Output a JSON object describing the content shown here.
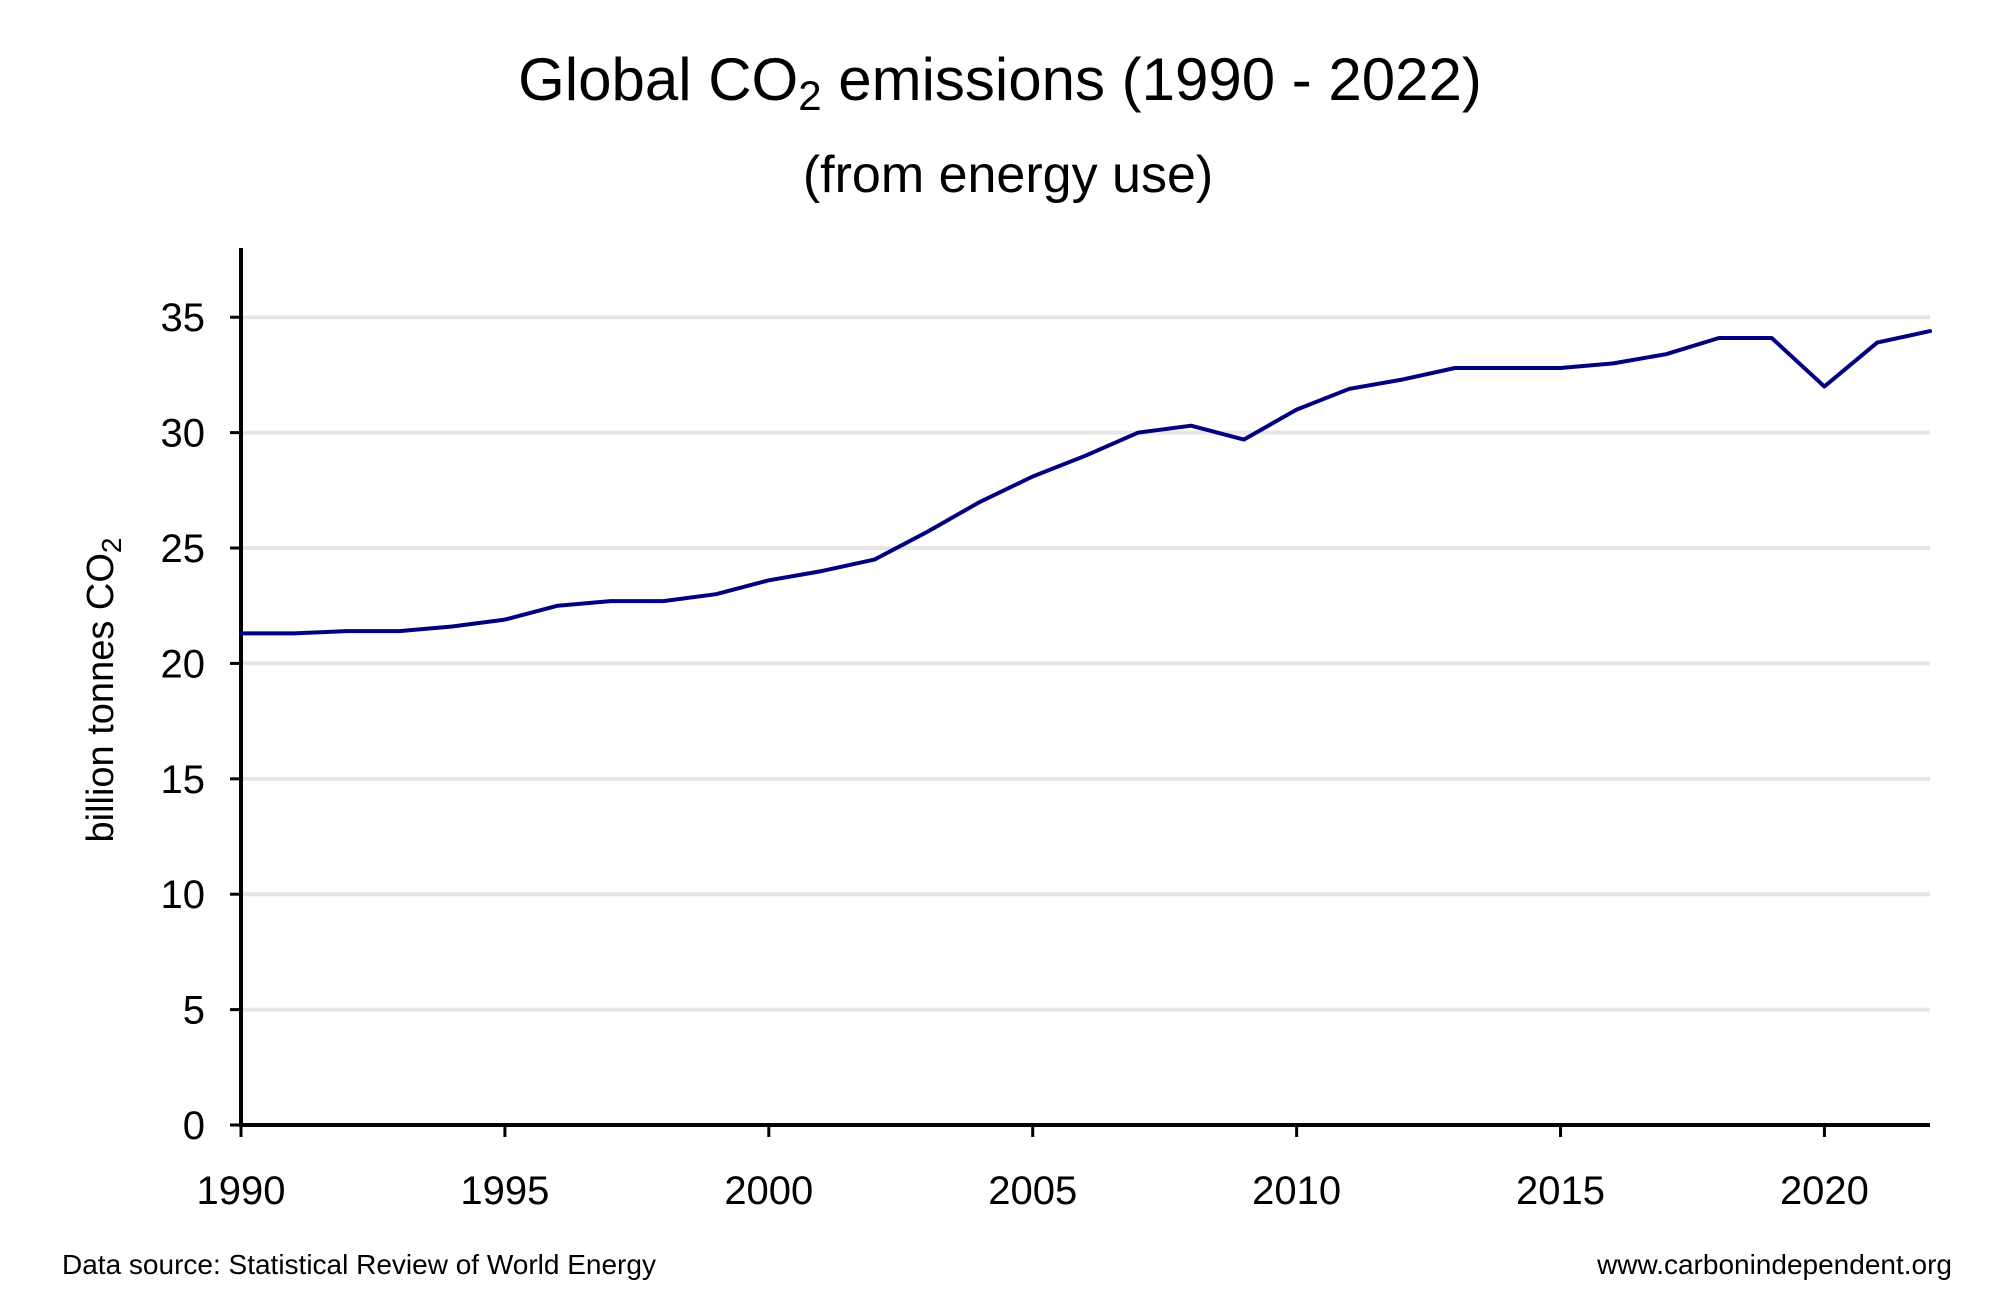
{
  "chart_data": {
    "type": "line",
    "title_main": "Global CO",
    "title_sub_char": "2",
    "title_rest": " emissions (1990 - 2022)",
    "subtitle": "(from energy use)",
    "ylabel_main": "billion tonnes CO",
    "ylabel_sub_char": "2",
    "xlabel": "",
    "xlim": [
      1990,
      2022
    ],
    "ylim": [
      0,
      38
    ],
    "x_ticks": [
      1990,
      1995,
      2000,
      2005,
      2010,
      2015,
      2020
    ],
    "y_ticks": [
      0,
      5,
      10,
      15,
      20,
      25,
      30,
      35
    ],
    "grid": "horizontal",
    "line_color": "#000080",
    "grid_color": "#e6e6e6",
    "series": [
      {
        "x": [
          1990,
          1991,
          1992,
          1993,
          1994,
          1995,
          1996,
          1997,
          1998,
          1999,
          2000,
          2001,
          2002,
          2003,
          2004,
          2005,
          2006,
          2007,
          2008,
          2009,
          2010,
          2011,
          2012,
          2013,
          2014,
          2015,
          2016,
          2017,
          2018,
          2019,
          2020,
          2021,
          2022
        ],
        "values": [
          21.3,
          21.3,
          21.4,
          21.4,
          21.6,
          21.9,
          22.5,
          22.7,
          22.7,
          23.0,
          23.6,
          24.0,
          24.5,
          25.7,
          27.0,
          28.1,
          29.0,
          30.0,
          30.3,
          29.7,
          31.0,
          31.9,
          32.3,
          32.8,
          32.8,
          32.8,
          33.0,
          33.4,
          34.1,
          34.1,
          32.0,
          33.9,
          34.4
        ]
      }
    ]
  },
  "footer": {
    "source": "Data source: Statistical Review of World Energy",
    "website": "www.carbonindependent.org"
  }
}
